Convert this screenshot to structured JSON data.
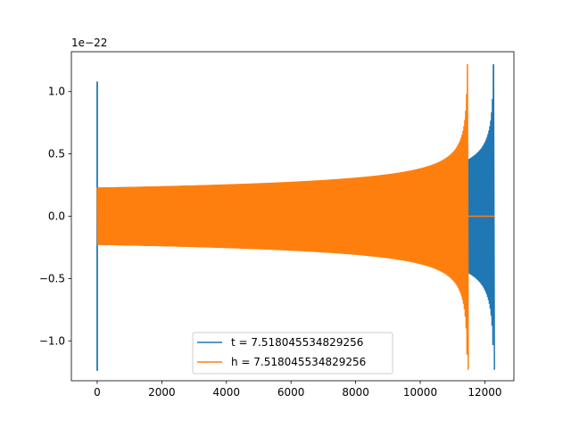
{
  "chart_data": {
    "type": "line",
    "title": "",
    "xlabel": "",
    "ylabel": "",
    "y_offset_label": "1e−22",
    "xlim": [
      -800,
      12900
    ],
    "ylim": [
      -1.32,
      1.32
    ],
    "x_ticks": [
      0,
      2000,
      4000,
      6000,
      8000,
      10000,
      12000
    ],
    "x_tick_labels": [
      "0",
      "2000",
      "4000",
      "6000",
      "8000",
      "10000",
      "12000"
    ],
    "y_ticks": [
      -1.0,
      -0.5,
      0.0,
      0.5,
      1.0
    ],
    "y_tick_labels": [
      "−1.0",
      "−0.5",
      "0.0",
      "0.5",
      "1.0"
    ],
    "grid": false,
    "legend_position": "lower-center",
    "series": [
      {
        "name": "t = 7.518045534829256",
        "color": "#1f77b4",
        "spike_start": {
          "x": 0,
          "max": 1.08,
          "min": -1.24
        },
        "chirp": {
          "x_start": 0,
          "x_end": 12270,
          "amp_start": 0.23,
          "amp_end": 1.22
        },
        "tail": {
          "x_start": 12270,
          "x_end": 12300,
          "value": 0.0
        }
      },
      {
        "name": "h = 7.518045534829256",
        "color": "#ff7f0e",
        "chirp": {
          "x_start": 0,
          "x_end": 11460,
          "amp_start": 0.23,
          "amp_end": 1.22
        },
        "tail": {
          "x_start": 11460,
          "x_end": 12300,
          "value": 0.0
        }
      }
    ]
  }
}
